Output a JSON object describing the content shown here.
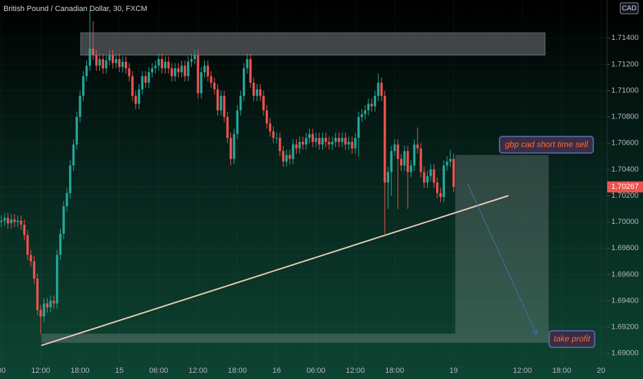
{
  "chart_data": {
    "type": "candlestick",
    "title": "British Pound / Canadian Dollar, 30, FXCM",
    "currency": "CAD",
    "up_color": "#26a69a",
    "down_color": "#ef5350",
    "xlim": [
      -0.42,
      184.84
    ],
    "ylim": [
      1.6892,
      1.7169
    ],
    "yticks": [
      {
        "value": 1.69,
        "label": "1.69000"
      },
      {
        "value": 1.692,
        "label": "1.69200"
      },
      {
        "value": 1.694,
        "label": "1.69400"
      },
      {
        "value": 1.696,
        "label": "1.69600"
      },
      {
        "value": 1.698,
        "label": "1.69800"
      },
      {
        "value": 1.7,
        "label": "1.70000"
      },
      {
        "value": 1.702,
        "label": "1.70200"
      },
      {
        "value": 1.704,
        "label": "1.70400"
      },
      {
        "value": 1.706,
        "label": "1.70600"
      },
      {
        "value": 1.708,
        "label": "1.70800"
      },
      {
        "value": 1.71,
        "label": "1.71000"
      },
      {
        "value": 1.712,
        "label": "1.71200"
      },
      {
        "value": 1.714,
        "label": "1.71400"
      }
    ],
    "xticks": [
      {
        "value": 0,
        "label": "00"
      },
      {
        "value": 12,
        "label": "12:00"
      },
      {
        "value": 24,
        "label": "18:00"
      },
      {
        "value": 36,
        "label": "15"
      },
      {
        "value": 48,
        "label": "06:00"
      },
      {
        "value": 60,
        "label": "12:00"
      },
      {
        "value": 72,
        "label": "18:00"
      },
      {
        "value": 84,
        "label": "16"
      },
      {
        "value": 96,
        "label": "06:00"
      },
      {
        "value": 108,
        "label": "12:00"
      },
      {
        "value": 120,
        "label": "18:00"
      },
      {
        "value": 138,
        "label": "19"
      },
      {
        "value": 159,
        "label": "12:00"
      },
      {
        "value": 171,
        "label": "18:00"
      },
      {
        "value": 183,
        "label": "20"
      }
    ],
    "ohlc": [
      [
        1.7,
        1.7005,
        1.6996,
        1.7001
      ],
      [
        1.7001,
        1.7007,
        1.6997,
        1.7003
      ],
      [
        1.7003,
        1.7007,
        1.6995,
        1.6999
      ],
      [
        1.6999,
        1.7006,
        1.6995,
        1.7002
      ],
      [
        1.7002,
        1.7006,
        1.6996,
        1.7
      ],
      [
        1.7,
        1.7005,
        1.6996,
        1.7001
      ],
      [
        1.7001,
        1.7005,
        1.6994,
        1.6998
      ],
      [
        1.6998,
        1.7002,
        1.6986,
        1.699
      ],
      [
        1.699,
        1.6994,
        1.6971,
        1.6975
      ],
      [
        1.6975,
        1.6979,
        1.6966,
        1.697
      ],
      [
        1.697,
        1.6974,
        1.6953,
        1.6957
      ],
      [
        1.6957,
        1.6961,
        1.6929,
        1.6933
      ],
      [
        1.6933,
        1.6937,
        1.6915,
        1.6928
      ],
      [
        1.6928,
        1.6942,
        1.6924,
        1.6938
      ],
      [
        1.6938,
        1.6942,
        1.6931,
        1.6935
      ],
      [
        1.6935,
        1.6944,
        1.6931,
        1.694
      ],
      [
        1.694,
        1.6944,
        1.6934,
        1.6938
      ],
      [
        1.6938,
        1.6979,
        1.6934,
        1.6975
      ],
      [
        1.6975,
        1.6995,
        1.6971,
        1.6991
      ],
      [
        1.6991,
        1.7016,
        1.6987,
        1.7012
      ],
      [
        1.7012,
        1.7026,
        1.7008,
        1.7022
      ],
      [
        1.7022,
        1.7047,
        1.7018,
        1.7043
      ],
      [
        1.7043,
        1.7063,
        1.7039,
        1.7059
      ],
      [
        1.7059,
        1.7084,
        1.7055,
        1.708
      ],
      [
        1.708,
        1.71,
        1.7076,
        1.7096
      ],
      [
        1.7096,
        1.7115,
        1.7092,
        1.7111
      ],
      [
        1.7111,
        1.7123,
        1.7107,
        1.7119
      ],
      [
        1.7119,
        1.7161,
        1.7115,
        1.7132
      ],
      [
        1.7132,
        1.7153,
        1.7123,
        1.7127
      ],
      [
        1.7127,
        1.7131,
        1.7115,
        1.7119
      ],
      [
        1.7119,
        1.7128,
        1.7115,
        1.7124
      ],
      [
        1.7124,
        1.7128,
        1.7113,
        1.7117
      ],
      [
        1.7117,
        1.7127,
        1.7113,
        1.7123
      ],
      [
        1.7123,
        1.7131,
        1.7119,
        1.7127
      ],
      [
        1.7127,
        1.7131,
        1.7117,
        1.7121
      ],
      [
        1.7121,
        1.7128,
        1.7117,
        1.7124
      ],
      [
        1.7124,
        1.7128,
        1.7114,
        1.7118
      ],
      [
        1.7118,
        1.7126,
        1.7114,
        1.7122
      ],
      [
        1.7122,
        1.7126,
        1.7113,
        1.7117
      ],
      [
        1.7117,
        1.7121,
        1.7107,
        1.7111
      ],
      [
        1.7111,
        1.7115,
        1.7092,
        1.7096
      ],
      [
        1.7096,
        1.71,
        1.7086,
        1.709
      ],
      [
        1.709,
        1.7105,
        1.7086,
        1.7101
      ],
      [
        1.7101,
        1.7115,
        1.7097,
        1.7111
      ],
      [
        1.7111,
        1.7115,
        1.7102,
        1.7106
      ],
      [
        1.7106,
        1.7118,
        1.7102,
        1.7114
      ],
      [
        1.7114,
        1.7121,
        1.711,
        1.7117
      ],
      [
        1.7117,
        1.7123,
        1.7113,
        1.7119
      ],
      [
        1.7119,
        1.7128,
        1.7115,
        1.7124
      ],
      [
        1.7124,
        1.7128,
        1.7113,
        1.7117
      ],
      [
        1.7117,
        1.7126,
        1.7113,
        1.7122
      ],
      [
        1.7122,
        1.7126,
        1.7113,
        1.7117
      ],
      [
        1.7117,
        1.7121,
        1.7107,
        1.7111
      ],
      [
        1.7111,
        1.7121,
        1.7107,
        1.7117
      ],
      [
        1.7117,
        1.7121,
        1.711,
        1.7114
      ],
      [
        1.7114,
        1.7123,
        1.711,
        1.7119
      ],
      [
        1.7119,
        1.7123,
        1.7107,
        1.7111
      ],
      [
        1.7111,
        1.7126,
        1.7107,
        1.7122
      ],
      [
        1.7122,
        1.7128,
        1.7118,
        1.7124
      ],
      [
        1.7124,
        1.7131,
        1.712,
        1.7127
      ],
      [
        1.7127,
        1.7131,
        1.7094,
        1.7098
      ],
      [
        1.7098,
        1.7118,
        1.7094,
        1.7114
      ],
      [
        1.7114,
        1.7123,
        1.711,
        1.7119
      ],
      [
        1.7119,
        1.7123,
        1.7107,
        1.7111
      ],
      [
        1.7111,
        1.7115,
        1.7102,
        1.7106
      ],
      [
        1.7106,
        1.711,
        1.7097,
        1.7101
      ],
      [
        1.7101,
        1.7105,
        1.7081,
        1.7085
      ],
      [
        1.7085,
        1.71,
        1.7081,
        1.7096
      ],
      [
        1.7096,
        1.71,
        1.7076,
        1.708
      ],
      [
        1.708,
        1.7084,
        1.706,
        1.7064
      ],
      [
        1.7064,
        1.7068,
        1.7043,
        1.7048
      ],
      [
        1.7048,
        1.7071,
        1.7044,
        1.7067
      ],
      [
        1.7067,
        1.7089,
        1.7063,
        1.7085
      ],
      [
        1.7085,
        1.71,
        1.7081,
        1.7096
      ],
      [
        1.7096,
        1.7121,
        1.7092,
        1.7117
      ],
      [
        1.7117,
        1.7128,
        1.7113,
        1.7124
      ],
      [
        1.7124,
        1.7128,
        1.7102,
        1.7106
      ],
      [
        1.7106,
        1.711,
        1.7092,
        1.7096
      ],
      [
        1.7096,
        1.7105,
        1.7092,
        1.7101
      ],
      [
        1.7101,
        1.7105,
        1.7092,
        1.7096
      ],
      [
        1.7096,
        1.71,
        1.7081,
        1.7085
      ],
      [
        1.7085,
        1.7089,
        1.7071,
        1.7075
      ],
      [
        1.7075,
        1.7079,
        1.7065,
        1.7069
      ],
      [
        1.7069,
        1.7073,
        1.706,
        1.7064
      ],
      [
        1.7064,
        1.7068,
        1.706,
        1.7064
      ],
      [
        1.7064,
        1.7068,
        1.705,
        1.7054
      ],
      [
        1.7054,
        1.7058,
        1.7042,
        1.7046
      ],
      [
        1.7046,
        1.7055,
        1.7042,
        1.7051
      ],
      [
        1.7051,
        1.7055,
        1.7044,
        1.7048
      ],
      [
        1.7048,
        1.7063,
        1.7044,
        1.7059
      ],
      [
        1.7059,
        1.7063,
        1.7052,
        1.7056
      ],
      [
        1.7056,
        1.7065,
        1.7052,
        1.7061
      ],
      [
        1.7061,
        1.7065,
        1.7055,
        1.7059
      ],
      [
        1.7059,
        1.7068,
        1.7055,
        1.7064
      ],
      [
        1.7064,
        1.7071,
        1.706,
        1.7067
      ],
      [
        1.7067,
        1.7071,
        1.7057,
        1.7061
      ],
      [
        1.7061,
        1.7068,
        1.7057,
        1.7064
      ],
      [
        1.7064,
        1.7068,
        1.7055,
        1.7059
      ],
      [
        1.7059,
        1.7068,
        1.7055,
        1.7064
      ],
      [
        1.7064,
        1.7068,
        1.7057,
        1.7061
      ],
      [
        1.7061,
        1.7065,
        1.7055,
        1.7059
      ],
      [
        1.7059,
        1.7065,
        1.7055,
        1.7061
      ],
      [
        1.7061,
        1.7068,
        1.7057,
        1.7064
      ],
      [
        1.7064,
        1.7068,
        1.7057,
        1.7061
      ],
      [
        1.7061,
        1.7068,
        1.7057,
        1.7064
      ],
      [
        1.7064,
        1.7068,
        1.7055,
        1.7059
      ],
      [
        1.7059,
        1.7065,
        1.7055,
        1.7061
      ],
      [
        1.7061,
        1.7065,
        1.7052,
        1.7056
      ],
      [
        1.7056,
        1.7068,
        1.7052,
        1.7064
      ],
      [
        1.7064,
        1.7084,
        1.705,
        1.708
      ],
      [
        1.708,
        1.7086,
        1.7076,
        1.7082
      ],
      [
        1.7082,
        1.7089,
        1.7078,
        1.7085
      ],
      [
        1.7085,
        1.7094,
        1.7081,
        1.709
      ],
      [
        1.709,
        1.7094,
        1.7084,
        1.7088
      ],
      [
        1.7088,
        1.71,
        1.7084,
        1.7096
      ],
      [
        1.7096,
        1.7113,
        1.7092,
        1.7106
      ],
      [
        1.7106,
        1.711,
        1.7092,
        1.7096
      ],
      [
        1.7096,
        1.71,
        1.6991,
        1.703
      ],
      [
        1.703,
        1.7042,
        1.701,
        1.7038
      ],
      [
        1.7038,
        1.7058,
        1.702,
        1.7054
      ],
      [
        1.7054,
        1.7063,
        1.705,
        1.7059
      ],
      [
        1.7059,
        1.7063,
        1.701,
        1.7048
      ],
      [
        1.7048,
        1.7052,
        1.7039,
        1.7043
      ],
      [
        1.7043,
        1.7058,
        1.7039,
        1.7054
      ],
      [
        1.7054,
        1.7058,
        1.701,
        1.7038
      ],
      [
        1.7038,
        1.7047,
        1.7034,
        1.7043
      ],
      [
        1.7043,
        1.7063,
        1.7039,
        1.7059
      ],
      [
        1.7059,
        1.7072,
        1.7052,
        1.7056
      ],
      [
        1.7056,
        1.706,
        1.7034,
        1.7038
      ],
      [
        1.7038,
        1.7042,
        1.7026,
        1.703
      ],
      [
        1.703,
        1.7039,
        1.7026,
        1.7035
      ],
      [
        1.7035,
        1.7044,
        1.7031,
        1.704
      ],
      [
        1.704,
        1.7044,
        1.7026,
        1.703
      ],
      [
        1.703,
        1.7034,
        1.7018,
        1.7022
      ],
      [
        1.7022,
        1.7026,
        1.7015,
        1.7019
      ],
      [
        1.7019,
        1.7047,
        1.7015,
        1.7043
      ],
      [
        1.7043,
        1.705,
        1.7039,
        1.7046
      ],
      [
        1.7046,
        1.7055,
        1.7042,
        1.7048
      ],
      [
        1.7048,
        1.7052,
        1.7023,
        1.70267
      ]
    ],
    "resistance_zone": {
      "x": [
        24.2,
        165.9
      ],
      "y": [
        1.7127,
        1.7144
      ]
    },
    "support_zone": {
      "x": [
        12.2,
        167.0
      ],
      "y": [
        1.6908,
        1.6915
      ]
    },
    "trend_line": {
      "x": [
        12.2,
        154.7
      ],
      "y": [
        1.6906,
        1.702
      ]
    },
    "position_box": {
      "x": [
        138.5,
        167.0
      ],
      "y": [
        1.6915,
        1.7051
      ]
    },
    "arrow": {
      "x": [
        142.3,
        163.2
      ],
      "y": [
        1.7029,
        1.6915
      ]
    },
    "sell_note": "gbp cad short time sell",
    "target_note": "take profit"
  }
}
